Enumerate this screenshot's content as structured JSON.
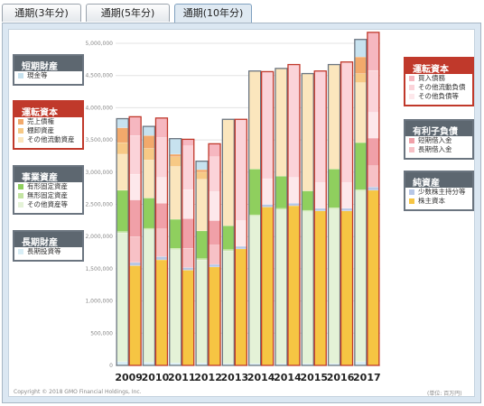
{
  "tabs": [
    {
      "label": "通期(3年分)",
      "active": false
    },
    {
      "label": "通期(5年分)",
      "active": false
    },
    {
      "label": "通期(10年分)",
      "active": true
    }
  ],
  "legend_left": [
    {
      "title": "短期財産",
      "accent": "#6b7580",
      "items": [
        {
          "label": "現金等",
          "color": "#c7e2ef"
        }
      ]
    },
    {
      "title": "運転資本",
      "accent": "#c0392b",
      "items": [
        {
          "label": "売上債権",
          "color": "#f2a96b"
        },
        {
          "label": "棚卸資産",
          "color": "#f7c985"
        },
        {
          "label": "その他流動資産",
          "color": "#fbe6bd"
        }
      ]
    },
    {
      "title": "事業資産",
      "accent": "#6b7580",
      "items": [
        {
          "label": "有形固定資産",
          "color": "#8fcf5e"
        },
        {
          "label": "無形固定資産",
          "color": "#c3e4a2"
        },
        {
          "label": "その他資産等",
          "color": "#e4f2d7"
        }
      ]
    },
    {
      "title": "長期財産",
      "accent": "#6b7580",
      "items": [
        {
          "label": "長期投資等",
          "color": "#d9eef6"
        }
      ]
    }
  ],
  "legend_right": [
    {
      "title": "運転資本",
      "accent": "#c0392b",
      "items": [
        {
          "label": "買入債務",
          "color": "#f6b7c0"
        },
        {
          "label": "その他流動負債",
          "color": "#fbd3d9"
        },
        {
          "label": "その他負債等",
          "color": "#fde8eb"
        }
      ]
    },
    {
      "title": "有利子負債",
      "accent": "#6b7580",
      "items": [
        {
          "label": "短期借入金",
          "color": "#f0a0a8"
        },
        {
          "label": "長期借入金",
          "color": "#f7c1c6"
        }
      ]
    },
    {
      "title": "純資産",
      "accent": "#6b7580",
      "items": [
        {
          "label": "少数株主持分等",
          "color": "#b7c7e6"
        },
        {
          "label": "株主資本",
          "color": "#f6c543"
        }
      ]
    }
  ],
  "footer": {
    "copyright": "Copyright © 2018 GMO Financial Holdings, Inc.",
    "unit": "(単位: 百万円)"
  },
  "chart_data": {
    "type": "bar",
    "stacked": true,
    "paired": true,
    "ylim": [
      0,
      5000000
    ],
    "yticks": [
      0,
      500000,
      1000000,
      1500000,
      2000000,
      2500000,
      3000000,
      3500000,
      4000000,
      4500000,
      5000000
    ],
    "ytick_labels": [
      "0",
      "500,000",
      "1,000,000",
      "1,500,000",
      "2,000,000",
      "2,500,000",
      "3,000,000",
      "3,500,000",
      "4,000,000",
      "4,500,000",
      "5,000,000"
    ],
    "categories": [
      "2009",
      "2010",
      "2011",
      "2012",
      "2013",
      "2014",
      "2014",
      "2015",
      "2016",
      "2017"
    ],
    "assets_series": [
      {
        "name": "長期投資等",
        "color": "#d9eef6",
        "values": [
          60000,
          50000,
          40000,
          40000,
          30000,
          30000,
          30000,
          30000,
          30000,
          60000
        ]
      },
      {
        "name": "その他資産等",
        "color": "#e4f2d7",
        "values": [
          2000000,
          2060000,
          1760000,
          1600000,
          1750000,
          2290000,
          2390000,
          2360000,
          2400000,
          2650000
        ]
      },
      {
        "name": "無形固定資産",
        "color": "#c3e4a2",
        "values": [
          20000,
          20000,
          20000,
          20000,
          20000,
          20000,
          20000,
          20000,
          20000,
          20000
        ]
      },
      {
        "name": "有形固定資産",
        "color": "#8fcf5e",
        "values": [
          640000,
          470000,
          450000,
          430000,
          370000,
          710000,
          500000,
          300000,
          600000,
          730000
        ]
      },
      {
        "name": "その他流動資産",
        "color": "#fbe6bd",
        "values": [
          560000,
          590000,
          820000,
          800000,
          1650000,
          1520000,
          1670000,
          1820000,
          1620000,
          930000
        ]
      },
      {
        "name": "棚卸資産",
        "color": "#f7c985",
        "values": [
          180000,
          180000,
          150000,
          110000,
          0,
          0,
          0,
          0,
          0,
          140000
        ]
      },
      {
        "name": "売上債権",
        "color": "#f2a96b",
        "values": [
          230000,
          200000,
          40000,
          40000,
          0,
          0,
          0,
          0,
          0,
          260000
        ]
      },
      {
        "name": "現金等",
        "color": "#c7e2ef",
        "values": [
          140000,
          140000,
          240000,
          130000,
          0,
          0,
          0,
          0,
          0,
          270000
        ]
      }
    ],
    "liabilities_series": [
      {
        "name": "株主資本",
        "color": "#f6c543",
        "values": [
          1550000,
          1640000,
          1480000,
          1530000,
          1810000,
          2460000,
          2480000,
          2400000,
          2400000,
          2720000
        ]
      },
      {
        "name": "少数株主持分等",
        "color": "#b7c7e6",
        "values": [
          50000,
          50000,
          40000,
          40000,
          40000,
          40000,
          40000,
          40000,
          40000,
          50000
        ]
      },
      {
        "name": "長期借入金",
        "color": "#f7c1c6",
        "values": [
          400000,
          430000,
          300000,
          300000,
          0,
          0,
          0,
          0,
          0,
          330000
        ]
      },
      {
        "name": "短期借入金",
        "color": "#f0a0a8",
        "values": [
          570000,
          400000,
          460000,
          380000,
          0,
          0,
          0,
          0,
          0,
          430000
        ]
      },
      {
        "name": "その他負債等",
        "color": "#fde8eb",
        "values": [
          400000,
          400000,
          450000,
          450000,
          400000,
          400000,
          400000,
          400000,
          400000,
          400000
        ]
      },
      {
        "name": "その他流動負債",
        "color": "#fbd3d9",
        "values": [
          600000,
          620000,
          680000,
          540000,
          1570000,
          1660000,
          1750000,
          1730000,
          1870000,
          650000
        ]
      },
      {
        "name": "買入債務",
        "color": "#f6b7c0",
        "values": [
          290000,
          300000,
          100000,
          200000,
          0,
          0,
          0,
          0,
          0,
          590000
        ]
      }
    ]
  }
}
